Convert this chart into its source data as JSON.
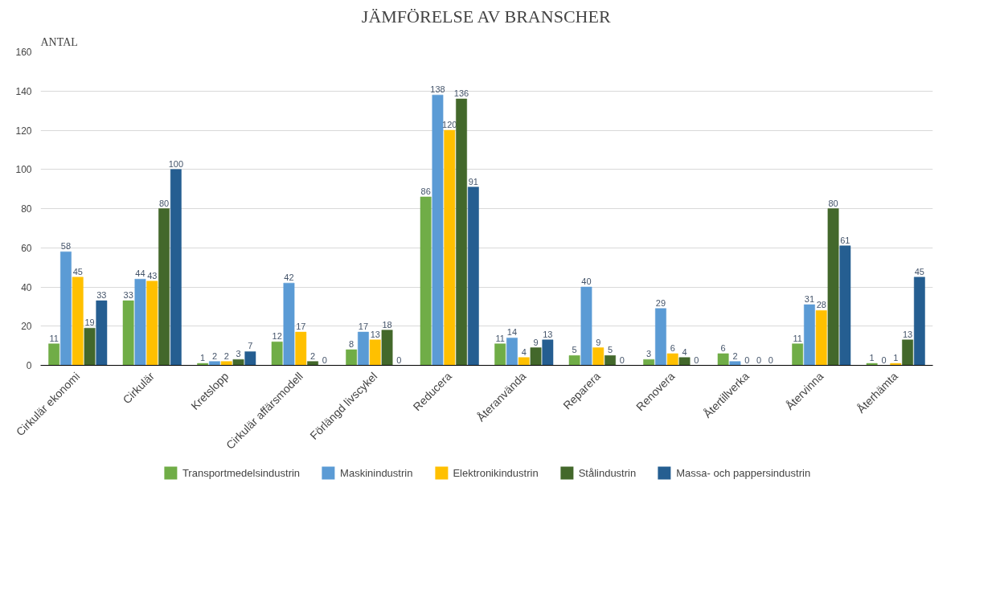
{
  "chart_data": {
    "type": "bar",
    "title": "JÄMFÖRELSE AV BRANSCHER",
    "ylabel": "ANTAL",
    "categories": [
      "Cirkulär ekonomi",
      "Cirkulär",
      "Kretslopp",
      "Cirkulär affärsmodell",
      "Förlängd livscykel",
      "Reducera",
      "Återanvända",
      "Reparera",
      "Renovera",
      "Återtillverka",
      "Återvinna",
      "Återhämta"
    ],
    "series": [
      {
        "name": "Transportmedelsindustrin",
        "color": "#70ad47",
        "values": [
          11,
          33,
          1,
          12,
          8,
          86,
          11,
          5,
          3,
          6,
          11,
          1
        ]
      },
      {
        "name": "Maskinindustrin",
        "color": "#5b9bd5",
        "values": [
          58,
          44,
          2,
          42,
          17,
          138,
          14,
          40,
          29,
          2,
          31,
          0
        ]
      },
      {
        "name": "Elektronikindustrin",
        "color": "#ffc000",
        "values": [
          45,
          43,
          2,
          17,
          13,
          120,
          4,
          9,
          6,
          0,
          28,
          1
        ]
      },
      {
        "name": "Stålindustrin",
        "color": "#43682b",
        "values": [
          19,
          80,
          3,
          2,
          18,
          136,
          9,
          5,
          4,
          0,
          80,
          13
        ]
      },
      {
        "name": "Massa- och pappersindustrin",
        "color": "#255e91",
        "values": [
          33,
          100,
          7,
          0,
          0,
          91,
          13,
          0,
          0,
          0,
          61,
          45
        ]
      }
    ],
    "ylim": [
      0,
      160
    ],
    "yticks": [
      0,
      20,
      40,
      60,
      80,
      100,
      120,
      140,
      160
    ],
    "grid": "y",
    "legend": "bottom",
    "data_labels": true
  }
}
